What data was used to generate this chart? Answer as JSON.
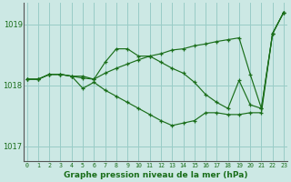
{
  "xlabel": "Graphe pression niveau de la mer (hPa)",
  "background_color": "#cce8e4",
  "grid_color": "#99ccc7",
  "line_color": "#1a6e1a",
  "ylim": [
    1016.75,
    1019.35
  ],
  "xlim": [
    -0.3,
    23.3
  ],
  "yticks": [
    1017,
    1018,
    1019
  ],
  "xticks": [
    0,
    1,
    2,
    3,
    4,
    5,
    6,
    7,
    8,
    9,
    10,
    11,
    12,
    13,
    14,
    15,
    16,
    17,
    18,
    19,
    20,
    21,
    22,
    23
  ],
  "series": [
    [
      1018.1,
      1018.1,
      1018.18,
      1018.18,
      1018.15,
      1018.15,
      1018.1,
      1018.38,
      1018.6,
      1018.6,
      1018.48,
      1018.48,
      1018.38,
      1018.28,
      1018.2,
      1018.05,
      1017.85,
      1017.72,
      1017.62,
      1018.08,
      1017.68,
      1017.62,
      1018.85,
      1019.2
    ],
    [
      1018.1,
      1018.1,
      1018.18,
      1018.18,
      1018.15,
      1018.12,
      1018.1,
      1018.2,
      1018.28,
      1018.35,
      1018.42,
      1018.48,
      1018.52,
      1018.58,
      1018.6,
      1018.65,
      1018.68,
      1018.72,
      1018.75,
      1018.78,
      1018.18,
      1017.62,
      1018.85,
      1019.2
    ],
    [
      1018.1,
      1018.1,
      1018.18,
      1018.18,
      1018.15,
      1017.95,
      1018.05,
      1017.92,
      1017.82,
      1017.72,
      1017.62,
      1017.52,
      1017.42,
      1017.34,
      1017.38,
      1017.42,
      1017.55,
      1017.55,
      1017.52,
      1017.52,
      1017.55,
      1017.55,
      1018.85,
      1019.2
    ]
  ]
}
